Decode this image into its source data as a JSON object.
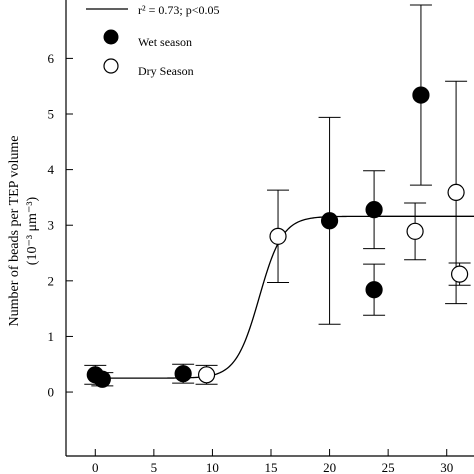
{
  "chart_data": {
    "type": "scatter",
    "ylabel_line1": "Number of beads per TEP volume",
    "ylabel_line2": "(10⁻³ μm⁻³)",
    "xlim": [
      -2.5,
      32.5
    ],
    "ylim": [
      -1.15,
      7.05
    ],
    "xticks": [
      0,
      5,
      10,
      15,
      20,
      25,
      30
    ],
    "yticks": [
      0,
      1,
      2,
      3,
      4,
      5,
      6
    ],
    "grid": false,
    "legend_position": "top-left",
    "legend": {
      "fit_label": "r² = 0.73; p<0.05",
      "wet_label": "Wet season",
      "dry_label": "Dry Season"
    },
    "series": [
      {
        "name": "Wet season",
        "marker": "filled-circle",
        "color": "#000000",
        "points": [
          {
            "x": 0.0,
            "y": 0.31,
            "err": 0.17
          },
          {
            "x": 0.6,
            "y": 0.23,
            "err": 0.12
          },
          {
            "x": 7.5,
            "y": 0.33,
            "err": 0.17
          },
          {
            "x": 20.0,
            "y": 3.08,
            "err": 1.86
          },
          {
            "x": 23.8,
            "y": 3.28,
            "err": 0.7
          },
          {
            "x": 23.8,
            "y": 1.84,
            "err": 0.46
          },
          {
            "x": 27.8,
            "y": 5.34,
            "err": 1.62
          }
        ]
      },
      {
        "name": "Dry Season",
        "marker": "open-circle",
        "color": "#000000",
        "points": [
          {
            "x": 9.5,
            "y": 0.31,
            "err": 0.17
          },
          {
            "x": 15.6,
            "y": 2.8,
            "err": 0.83
          },
          {
            "x": 27.3,
            "y": 2.89,
            "err": 0.51
          },
          {
            "x": 30.8,
            "y": 3.59,
            "err": 2.0
          },
          {
            "x": 31.1,
            "y": 2.12,
            "err": 0.2
          }
        ]
      }
    ],
    "fit": {
      "type": "sigmoid",
      "bottom": 0.25,
      "top": 3.16,
      "x50": 14.0,
      "slope": 1.0
    }
  }
}
